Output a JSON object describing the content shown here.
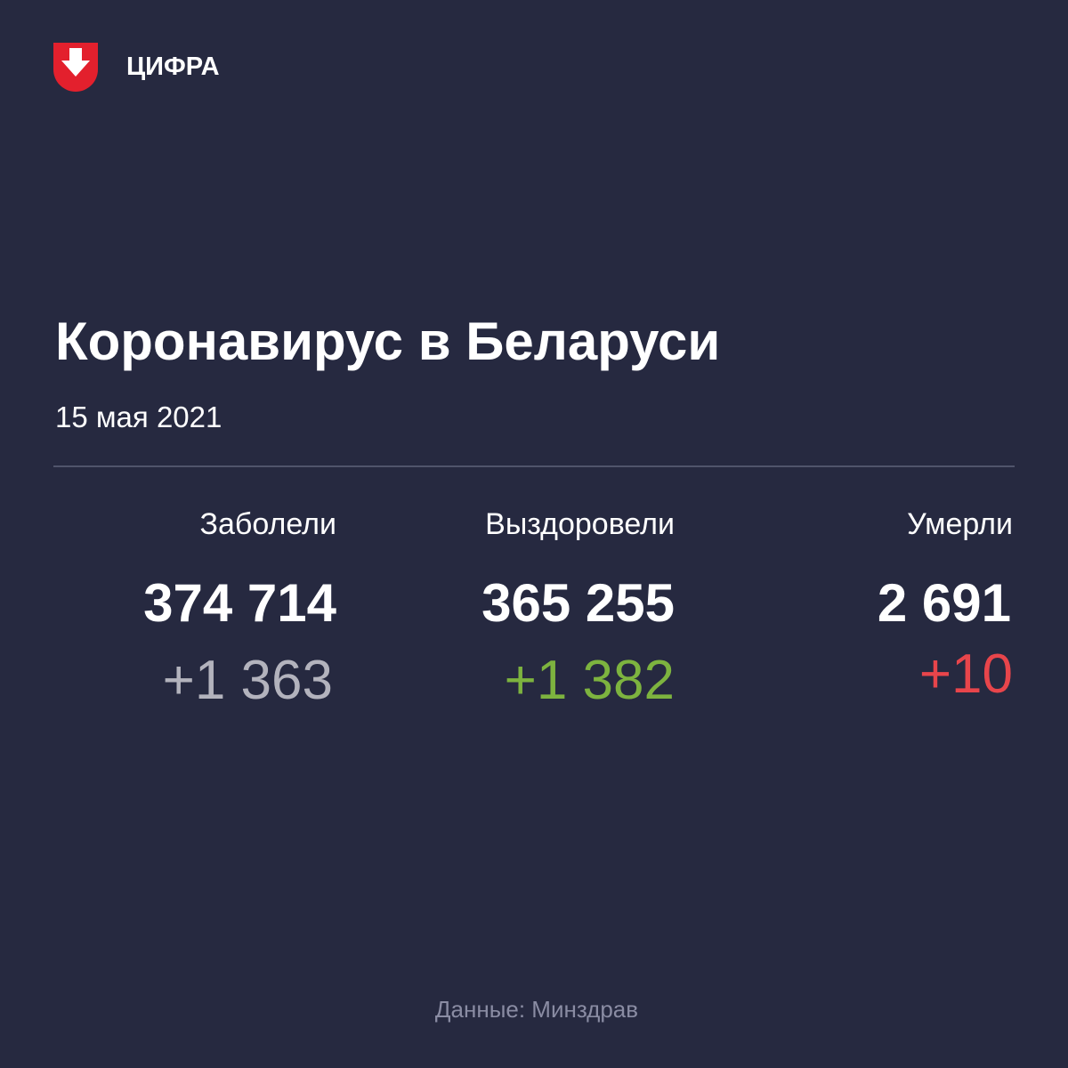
{
  "brand": "ЦИФРА",
  "title": "Коронавирус в Беларуси",
  "date": "15 мая 2021",
  "stats": [
    {
      "label": "Заболели",
      "total": "374 714",
      "change": "+1 363"
    },
    {
      "label": "Выздоровели",
      "total": "365 255",
      "change": "+1 382"
    },
    {
      "label": "Умерли",
      "total": "2 691",
      "change": "+10"
    }
  ],
  "source": "Данные: Минздрав"
}
